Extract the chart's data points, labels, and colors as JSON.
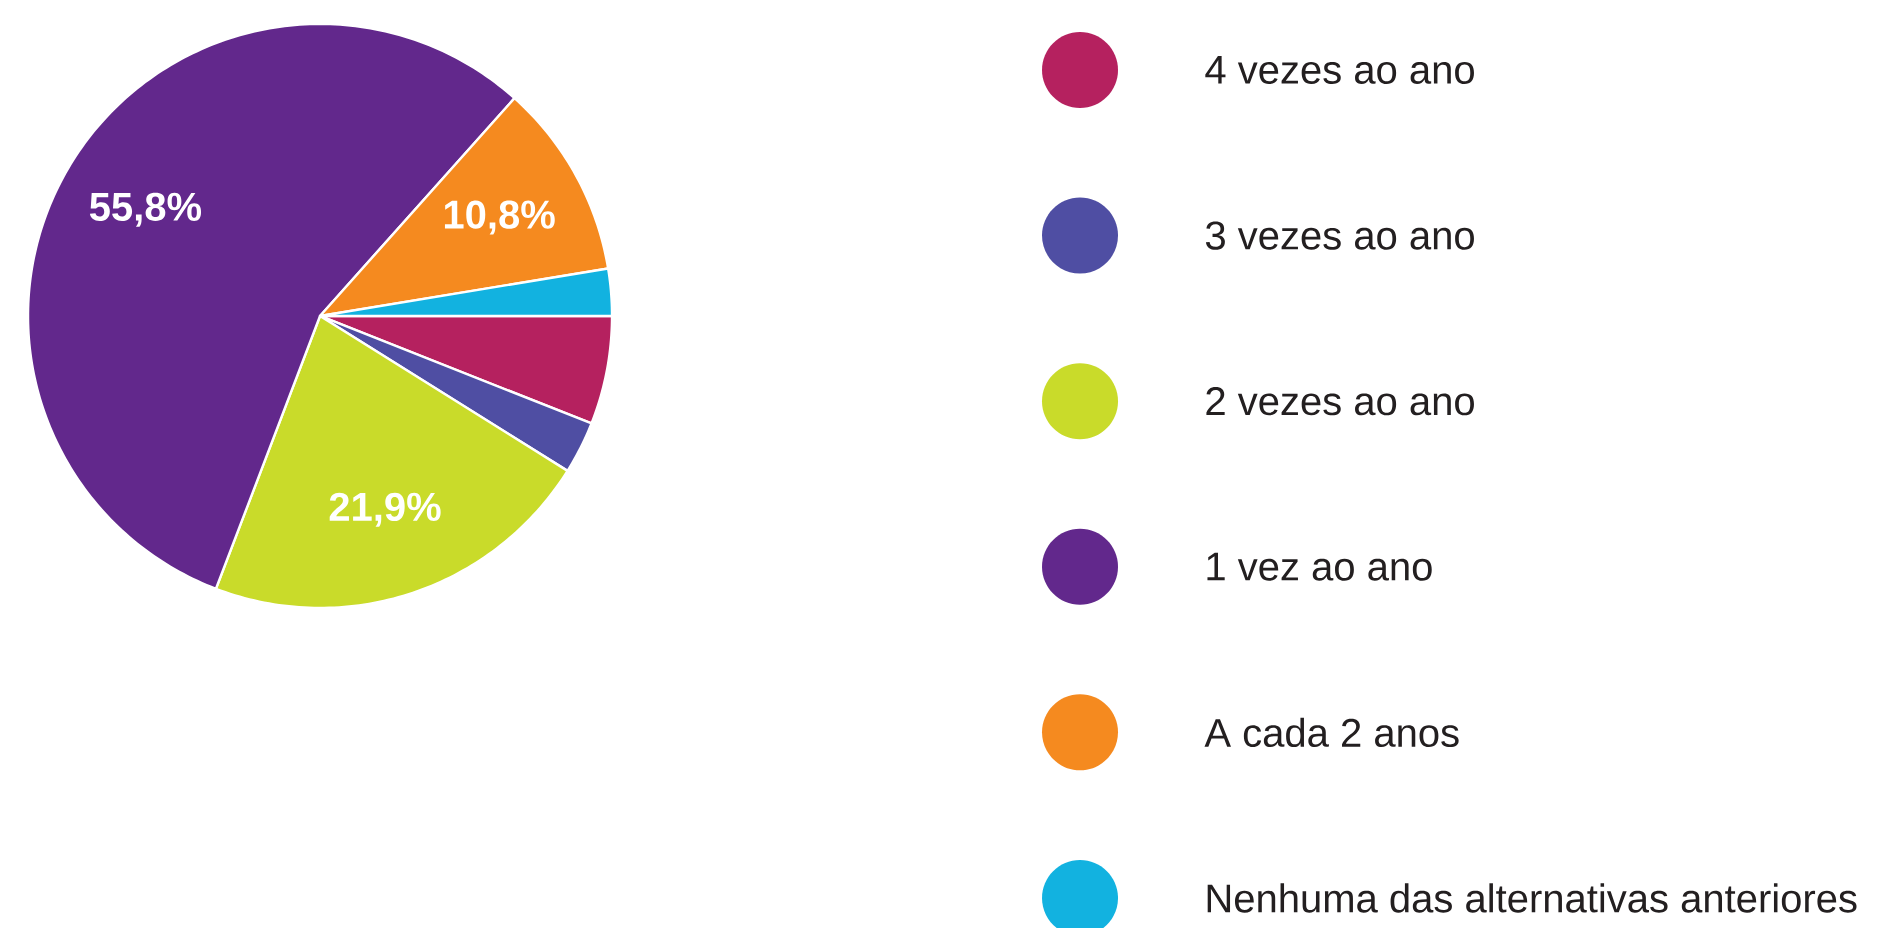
{
  "chart_data": {
    "type": "pie",
    "categories": [
      "4 vezes ao ano",
      "3 vezes ao ano",
      "2 vezes ao ano",
      "1 vez ao ano",
      "A cada 2 anos",
      "Nenhuma das alternativas anteriores"
    ],
    "values": [
      6.0,
      2.9,
      21.9,
      55.8,
      10.8,
      2.6
    ],
    "colors": [
      "#b5215f",
      "#4f4ea3",
      "#c9db2a",
      "#62288c",
      "#f58a1f",
      "#12b2e0"
    ],
    "value_labels": [
      null,
      null,
      "21,9%",
      "55,8%",
      "10,8%",
      null
    ],
    "legend": "right"
  }
}
